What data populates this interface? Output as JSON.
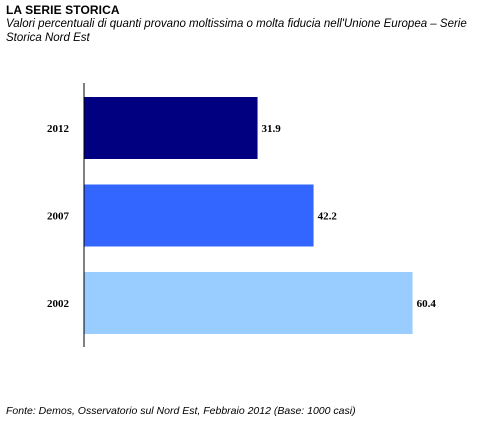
{
  "header": {
    "title": "LA SERIE STORICA",
    "subtitle": "Valori percentuali di quanti provano moltissima o molta fiducia nell'Unione Europea – Serie Storica Nord Est"
  },
  "footer": {
    "source": "Fonte: Demos, Osservatorio sul Nord Est, Febbraio 2012 (Base: 1000 casi)"
  },
  "chart_data": {
    "type": "bar",
    "orientation": "horizontal",
    "categories": [
      "2012",
      "2007",
      "2002"
    ],
    "values": [
      31.9,
      42.2,
      60.4
    ],
    "value_labels": [
      "31.9",
      "42.2",
      "60.4"
    ],
    "colors": [
      "#000080",
      "#3366ff",
      "#99ccff"
    ],
    "title": "LA SERIE STORICA",
    "xlabel": "",
    "ylabel": "",
    "xlim": [
      0,
      64
    ],
    "grid": false,
    "legend": "none"
  }
}
